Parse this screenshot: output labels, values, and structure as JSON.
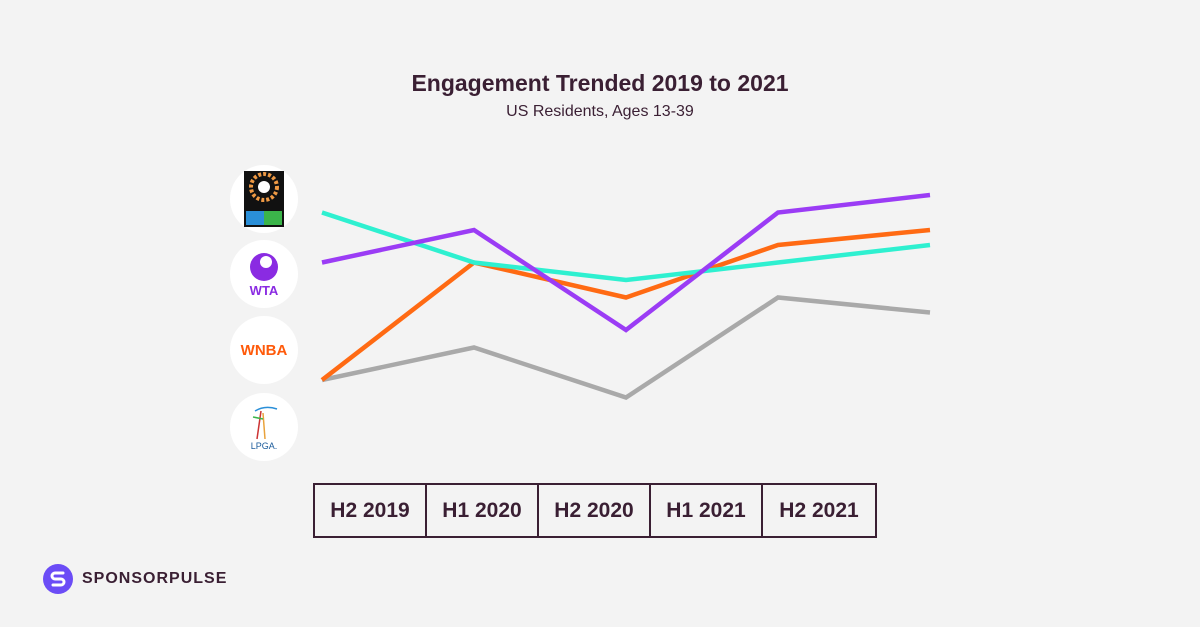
{
  "chart_data": {
    "type": "line",
    "title": "Engagement Trended 2019 to 2021",
    "subtitle": "US Residents, Ages 13-39",
    "categories": [
      "H2 2019",
      "H1 2020",
      "H2 2020",
      "H1 2021",
      "H2 2021"
    ],
    "ylim": [
      0,
      100
    ],
    "grid": false,
    "y_axis_shown": false,
    "series": [
      {
        "logo": "FIFA Women's World Cup AU NZ 2023",
        "color": "#2ef0d0",
        "values": [
          87,
          67,
          60,
          67,
          74
        ]
      },
      {
        "logo": "WTA",
        "color": "#9b3cf5",
        "values": [
          67,
          80,
          40,
          87,
          94
        ]
      },
      {
        "logo": "WNBA",
        "color": "#ff6a13",
        "values": [
          20,
          67,
          53,
          74,
          80
        ]
      },
      {
        "logo": "LPGA",
        "color": "#a9a9a9",
        "values": [
          20,
          33,
          13,
          53,
          47
        ]
      }
    ]
  },
  "logos": {
    "fifa": "AU NZ 2023",
    "wta": "WTA",
    "wnba": "WNBA",
    "lpga": "LPGA."
  },
  "brand": {
    "name": "SPONSORPULSE",
    "color": "#6b4cf6"
  }
}
